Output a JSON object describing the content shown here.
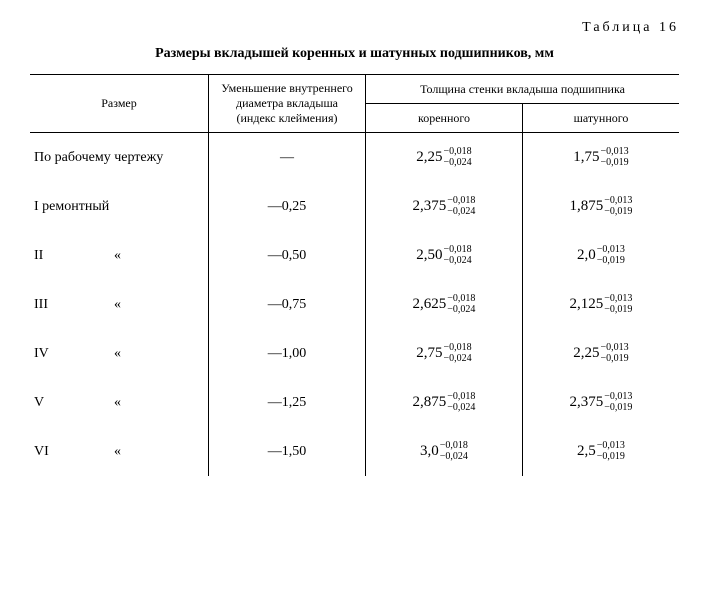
{
  "header": {
    "table_number": "Таблица 16",
    "title": "Размеры вкладышей коренных и шатунных подшипников, мм"
  },
  "columns": {
    "size": "Размер",
    "reduction": "Уменьшение внутреннего диаметра вкладыша (индекс клеймения)",
    "thickness_group": "Толщина стенки вкладыша подшипника",
    "main": "коренного",
    "conrod": "шатунного"
  },
  "tol_main": {
    "upper": "−0,018",
    "lower": "−0,024"
  },
  "tol_conrod": {
    "upper": "−0,013",
    "lower": "−0,019"
  },
  "rows": [
    {
      "size": "По рабочему чертежу",
      "reduction": "—",
      "main": "2,25",
      "conrod": "1,75"
    },
    {
      "size": "I ремонтный",
      "reduction": "—0,25",
      "main": "2,375",
      "conrod": "1,875"
    },
    {
      "size_roman": "II",
      "mark": "«",
      "reduction": "—0,50",
      "main": "2,50",
      "conrod": "2,0"
    },
    {
      "size_roman": "III",
      "mark": "«",
      "reduction": "—0,75",
      "main": "2,625",
      "conrod": "2,125"
    },
    {
      "size_roman": "IV",
      "mark": "«",
      "reduction": "—1,00",
      "main": "2,75",
      "conrod": "2,25"
    },
    {
      "size_roman": "V",
      "mark": "«",
      "reduction": "—1,25",
      "main": "2,875",
      "conrod": "2,375"
    },
    {
      "size_roman": "VI",
      "mark": "«",
      "reduction": "—1,50",
      "main": "3,0",
      "conrod": "2,5"
    }
  ]
}
